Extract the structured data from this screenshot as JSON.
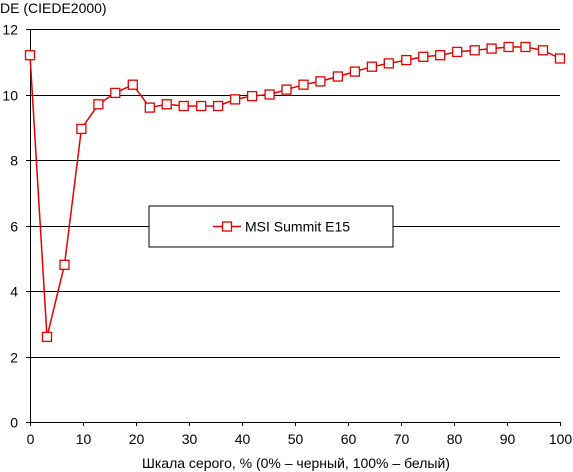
{
  "chart_data": {
    "type": "line",
    "ylabel": "DE (CIEDE2000)",
    "xlabel": "Шкала серого, % (0% – черный, 100% – белый)",
    "xlim": [
      0,
      100
    ],
    "ylim": [
      0,
      12
    ],
    "x_ticks": [
      0,
      10,
      20,
      30,
      40,
      50,
      60,
      70,
      80,
      90,
      100
    ],
    "y_ticks": [
      0,
      2,
      4,
      6,
      8,
      10,
      12
    ],
    "grid": "horizontal",
    "legend_position": "center",
    "series": [
      {
        "name": "MSI Summit E15",
        "color": "#e00000",
        "marker": "square",
        "x": [
          0,
          3.2,
          6.5,
          9.7,
          12.9,
          16.1,
          19.4,
          22.6,
          25.8,
          29.0,
          32.3,
          35.5,
          38.7,
          41.9,
          45.2,
          48.4,
          51.6,
          54.8,
          58.1,
          61.3,
          64.5,
          67.7,
          71.0,
          74.2,
          77.4,
          80.6,
          83.9,
          87.1,
          90.3,
          93.5,
          96.8,
          100
        ],
        "y": [
          11.2,
          2.6,
          4.8,
          8.95,
          9.7,
          10.05,
          10.3,
          9.6,
          9.7,
          9.65,
          9.65,
          9.65,
          9.85,
          9.95,
          10.0,
          10.15,
          10.3,
          10.4,
          10.55,
          10.7,
          10.85,
          10.95,
          11.05,
          11.15,
          11.2,
          11.3,
          11.35,
          11.4,
          11.45,
          11.45,
          11.35,
          11.1
        ]
      }
    ]
  }
}
